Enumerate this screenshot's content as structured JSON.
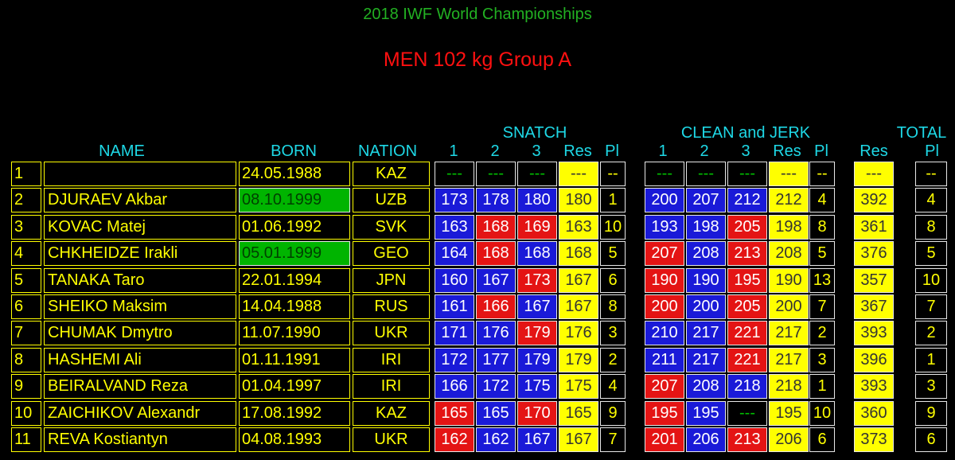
{
  "header": {
    "title": "2018 IWF World Championships",
    "subtitle": "MEN 102 kg Group A",
    "groups": {
      "snatch": "SNATCH",
      "clean_jerk": "CLEAN and JERK",
      "total": "TOTAL"
    },
    "columns": [
      "NAME",
      "BORN",
      "NATION",
      "1",
      "2",
      "3",
      "Res",
      "Pl",
      "1",
      "2",
      "3",
      "Res",
      "Pl",
      "Res",
      "Pl"
    ]
  },
  "colors": {
    "good": "#1a1ad8",
    "no-lift": "#e41414",
    "result": "#ffff00",
    "highlight": "#00b400"
  },
  "rows": [
    {
      "rank": "1",
      "name": null,
      "born": "24.05.1988",
      "nation": "KAZ",
      "snatch": {
        "attempts": [
          "---",
          "---",
          "---"
        ],
        "status": [
          null,
          null,
          null
        ],
        "res": "---",
        "pl": "--"
      },
      "clean_jerk": {
        "attempts": [
          "---",
          "---",
          "---"
        ],
        "status": [
          null,
          null,
          null
        ],
        "res": "---",
        "pl": "--"
      },
      "total": {
        "res": "---",
        "pl": "--"
      }
    },
    {
      "rank": "2",
      "name": "DJURAEV Akbar",
      "born": "08.10.1999",
      "born_highlight": true,
      "nation": "UZB",
      "snatch": {
        "attempts": [
          "173",
          "178",
          "180"
        ],
        "status": [
          "good",
          "good",
          "good"
        ],
        "res": "180",
        "pl": "1"
      },
      "clean_jerk": {
        "attempts": [
          "200",
          "207",
          "212"
        ],
        "status": [
          "good",
          "good",
          "good"
        ],
        "res": "212",
        "pl": "4"
      },
      "total": {
        "res": "392",
        "pl": "4"
      }
    },
    {
      "rank": "3",
      "name": "KOVAC Matej",
      "born": "01.06.1992",
      "nation": "SVK",
      "snatch": {
        "attempts": [
          "163",
          "168",
          "169"
        ],
        "status": [
          "good",
          "no-lift",
          "no-lift"
        ],
        "res": "163",
        "pl": "10"
      },
      "clean_jerk": {
        "attempts": [
          "193",
          "198",
          "205"
        ],
        "status": [
          "good",
          "good",
          "no-lift"
        ],
        "res": "198",
        "pl": "8"
      },
      "total": {
        "res": "361",
        "pl": "8"
      }
    },
    {
      "rank": "4",
      "name": "CHKHEIDZE Irakli",
      "born": "05.01.1999",
      "born_highlight": true,
      "nation": "GEO",
      "snatch": {
        "attempts": [
          "164",
          "168",
          "168"
        ],
        "status": [
          "good",
          "no-lift",
          "good"
        ],
        "res": "168",
        "pl": "5"
      },
      "clean_jerk": {
        "attempts": [
          "207",
          "208",
          "213"
        ],
        "status": [
          "no-lift",
          "good",
          "no-lift"
        ],
        "res": "208",
        "pl": "5"
      },
      "total": {
        "res": "376",
        "pl": "5"
      }
    },
    {
      "rank": "5",
      "name": "TANAKA Taro",
      "born": "22.01.1994",
      "nation": "JPN",
      "snatch": {
        "attempts": [
          "160",
          "167",
          "173"
        ],
        "status": [
          "good",
          "good",
          "no-lift"
        ],
        "res": "167",
        "pl": "6"
      },
      "clean_jerk": {
        "attempts": [
          "190",
          "190",
          "195"
        ],
        "status": [
          "no-lift",
          "good",
          "no-lift"
        ],
        "res": "190",
        "pl": "13"
      },
      "total": {
        "res": "357",
        "pl": "10"
      }
    },
    {
      "rank": "6",
      "name": "SHEIKO Maksim",
      "born": "14.04.1988",
      "nation": "RUS",
      "snatch": {
        "attempts": [
          "161",
          "166",
          "167"
        ],
        "status": [
          "good",
          "no-lift",
          "good"
        ],
        "res": "167",
        "pl": "8"
      },
      "clean_jerk": {
        "attempts": [
          "200",
          "200",
          "205"
        ],
        "status": [
          "no-lift",
          "good",
          "no-lift"
        ],
        "res": "200",
        "pl": "7"
      },
      "total": {
        "res": "367",
        "pl": "7"
      }
    },
    {
      "rank": "7",
      "name": "CHUMAK Dmytro",
      "born": "11.07.1990",
      "nation": "UKR",
      "snatch": {
        "attempts": [
          "171",
          "176",
          "179"
        ],
        "status": [
          "good",
          "good",
          "no-lift"
        ],
        "res": "176",
        "pl": "3"
      },
      "clean_jerk": {
        "attempts": [
          "210",
          "217",
          "221"
        ],
        "status": [
          "good",
          "good",
          "no-lift"
        ],
        "res": "217",
        "pl": "2"
      },
      "total": {
        "res": "393",
        "pl": "2"
      }
    },
    {
      "rank": "8",
      "name": "HASHEMI Ali",
      "born": "01.11.1991",
      "nation": "IRI",
      "snatch": {
        "attempts": [
          "172",
          "177",
          "179"
        ],
        "status": [
          "good",
          "good",
          "good"
        ],
        "res": "179",
        "pl": "2"
      },
      "clean_jerk": {
        "attempts": [
          "211",
          "217",
          "221"
        ],
        "status": [
          "good",
          "good",
          "no-lift"
        ],
        "res": "217",
        "pl": "3"
      },
      "total": {
        "res": "396",
        "pl": "1"
      }
    },
    {
      "rank": "9",
      "name": "BEIRALVAND Reza",
      "born": "01.04.1997",
      "nation": "IRI",
      "snatch": {
        "attempts": [
          "166",
          "172",
          "175"
        ],
        "status": [
          "good",
          "good",
          "good"
        ],
        "res": "175",
        "pl": "4"
      },
      "clean_jerk": {
        "attempts": [
          "207",
          "208",
          "218"
        ],
        "status": [
          "no-lift",
          "good",
          "good"
        ],
        "res": "218",
        "pl": "1"
      },
      "total": {
        "res": "393",
        "pl": "3"
      }
    },
    {
      "rank": "10",
      "name": "ZAICHIKOV Alexandr",
      "born": "17.08.1992",
      "nation": "KAZ",
      "snatch": {
        "attempts": [
          "165",
          "165",
          "170"
        ],
        "status": [
          "no-lift",
          "good",
          "no-lift"
        ],
        "res": "165",
        "pl": "9"
      },
      "clean_jerk": {
        "attempts": [
          "195",
          "195",
          "---"
        ],
        "status": [
          "no-lift",
          "good",
          null
        ],
        "res": "195",
        "pl": "10"
      },
      "total": {
        "res": "360",
        "pl": "9"
      }
    },
    {
      "rank": "11",
      "name": "REVA Kostiantyn",
      "born": "04.08.1993",
      "nation": "UKR",
      "snatch": {
        "attempts": [
          "162",
          "162",
          "167"
        ],
        "status": [
          "no-lift",
          "good",
          "good"
        ],
        "res": "167",
        "pl": "7"
      },
      "clean_jerk": {
        "attempts": [
          "201",
          "206",
          "213"
        ],
        "status": [
          "no-lift",
          "good",
          "no-lift"
        ],
        "res": "206",
        "pl": "6"
      },
      "total": {
        "res": "373",
        "pl": "6"
      }
    }
  ]
}
